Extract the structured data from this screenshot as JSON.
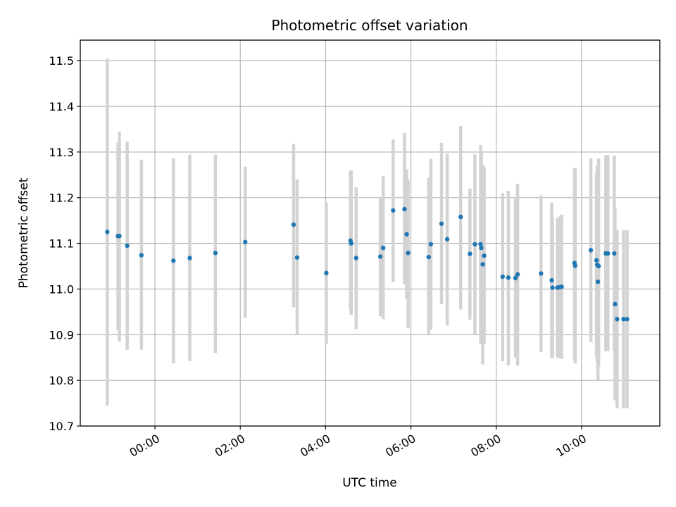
{
  "chart_data": {
    "type": "scatter",
    "title": "Photometric offset variation",
    "xlabel": "UTC time",
    "ylabel": "Photometric offset",
    "xlim": [
      "-01:45",
      "11:50"
    ],
    "ylim": [
      10.7,
      11.545
    ],
    "x_ticks": [
      "00:00",
      "02:00",
      "04:00",
      "06:00",
      "08:00",
      "10:00"
    ],
    "y_ticks": [
      "10.7",
      "10.8",
      "10.9",
      "11.0",
      "11.1",
      "11.2",
      "11.3",
      "11.4",
      "11.5"
    ],
    "grid": true,
    "colors": {
      "point": "#1f77b4",
      "errorbar": "#d3d3d3",
      "grid": "#b0b0b0"
    },
    "series": [
      {
        "points": [
          {
            "x": "-01:07",
            "y": 11.125,
            "ylo": 10.745,
            "yhi": 11.505
          },
          {
            "x": "-00:52",
            "y": 11.116,
            "ylo": 10.91,
            "yhi": 11.32
          },
          {
            "x": "-00:50",
            "y": 11.116,
            "ylo": 10.885,
            "yhi": 11.345
          },
          {
            "x": "-00:39",
            "y": 11.095,
            "ylo": 10.867,
            "yhi": 11.323
          },
          {
            "x": "-00:19",
            "y": 11.074,
            "ylo": 10.867,
            "yhi": 11.283
          },
          {
            "x": "00:26",
            "y": 11.062,
            "ylo": 10.837,
            "yhi": 11.287
          },
          {
            "x": "00:49",
            "y": 11.068,
            "ylo": 10.842,
            "yhi": 11.294
          },
          {
            "x": "01:25",
            "y": 11.079,
            "ylo": 10.86,
            "yhi": 11.294
          },
          {
            "x": "02:07",
            "y": 11.103,
            "ylo": 10.937,
            "yhi": 11.268
          },
          {
            "x": "03:15",
            "y": 11.141,
            "ylo": 10.96,
            "yhi": 11.318
          },
          {
            "x": "03:20",
            "y": 11.069,
            "ylo": 10.9,
            "yhi": 11.24
          },
          {
            "x": "04:01",
            "y": 11.035,
            "ylo": 10.88,
            "yhi": 11.19
          },
          {
            "x": "04:35",
            "y": 11.106,
            "ylo": 10.955,
            "yhi": 11.258
          },
          {
            "x": "04:36",
            "y": 11.1,
            "ylo": 10.943,
            "yhi": 11.26
          },
          {
            "x": "04:43",
            "y": 11.068,
            "ylo": 10.912,
            "yhi": 11.223
          },
          {
            "x": "05:17",
            "y": 11.071,
            "ylo": 10.94,
            "yhi": 11.2
          },
          {
            "x": "05:21",
            "y": 11.09,
            "ylo": 10.934,
            "yhi": 11.247
          },
          {
            "x": "05:35",
            "y": 11.172,
            "ylo": 11.015,
            "yhi": 11.328
          },
          {
            "x": "05:51",
            "y": 11.175,
            "ylo": 11.01,
            "yhi": 11.342
          },
          {
            "x": "05:54",
            "y": 11.12,
            "ylo": 10.978,
            "yhi": 11.262
          },
          {
            "x": "05:56",
            "y": 11.079,
            "ylo": 10.914,
            "yhi": 11.24
          },
          {
            "x": "06:25",
            "y": 11.07,
            "ylo": 10.9,
            "yhi": 11.243
          },
          {
            "x": "06:28",
            "y": 11.098,
            "ylo": 10.91,
            "yhi": 11.285
          },
          {
            "x": "06:43",
            "y": 11.143,
            "ylo": 10.967,
            "yhi": 11.32
          },
          {
            "x": "06:51",
            "y": 11.109,
            "ylo": 10.92,
            "yhi": 11.297
          },
          {
            "x": "07:10",
            "y": 11.158,
            "ylo": 10.955,
            "yhi": 11.357
          },
          {
            "x": "07:23",
            "y": 11.077,
            "ylo": 10.933,
            "yhi": 11.22
          },
          {
            "x": "07:30",
            "y": 11.098,
            "ylo": 10.9,
            "yhi": 11.295
          },
          {
            "x": "07:38",
            "y": 11.098,
            "ylo": 10.882,
            "yhi": 11.315
          },
          {
            "x": "07:39",
            "y": 11.09,
            "ylo": 10.88,
            "yhi": 11.3
          },
          {
            "x": "07:41",
            "y": 11.054,
            "ylo": 10.835,
            "yhi": 11.272
          },
          {
            "x": "07:43",
            "y": 11.073,
            "ylo": 10.88,
            "yhi": 11.268
          },
          {
            "x": "08:09",
            "y": 11.027,
            "ylo": 10.842,
            "yhi": 11.21
          },
          {
            "x": "08:17",
            "y": 11.025,
            "ylo": 10.833,
            "yhi": 11.215
          },
          {
            "x": "08:27",
            "y": 11.024,
            "ylo": 10.85,
            "yhi": 11.198
          },
          {
            "x": "08:30",
            "y": 11.032,
            "ylo": 10.832,
            "yhi": 11.23
          },
          {
            "x": "09:03",
            "y": 11.034,
            "ylo": 10.862,
            "yhi": 11.205
          },
          {
            "x": "09:18",
            "y": 11.019,
            "ylo": 10.849,
            "yhi": 11.189
          },
          {
            "x": "09:19",
            "y": 11.003,
            "ylo": 10.85,
            "yhi": 11.155
          },
          {
            "x": "09:26",
            "y": 11.003,
            "ylo": 10.85,
            "yhi": 11.155
          },
          {
            "x": "09:29",
            "y": 11.004,
            "ylo": 10.848,
            "yhi": 11.159
          },
          {
            "x": "09:32",
            "y": 11.005,
            "ylo": 10.847,
            "yhi": 11.163
          },
          {
            "x": "09:50",
            "y": 11.057,
            "ylo": 10.846,
            "yhi": 11.265
          },
          {
            "x": "09:51",
            "y": 11.051,
            "ylo": 10.837,
            "yhi": 11.265
          },
          {
            "x": "10:13",
            "y": 11.085,
            "ylo": 10.884,
            "yhi": 11.286
          },
          {
            "x": "10:21",
            "y": 11.063,
            "ylo": 10.85,
            "yhi": 11.255
          },
          {
            "x": "10:22",
            "y": 11.053,
            "ylo": 10.84,
            "yhi": 11.27
          },
          {
            "x": "10:23",
            "y": 11.016,
            "ylo": 10.8,
            "yhi": 11.23
          },
          {
            "x": "10:24",
            "y": 11.05,
            "ylo": 10.83,
            "yhi": 11.286
          },
          {
            "x": "10:34",
            "y": 11.078,
            "ylo": 10.864,
            "yhi": 11.293
          },
          {
            "x": "10:37",
            "y": 11.078,
            "ylo": 10.864,
            "yhi": 11.293
          },
          {
            "x": "10:46",
            "y": 11.078,
            "ylo": 10.864,
            "yhi": 11.292
          },
          {
            "x": "10:47",
            "y": 10.967,
            "ylo": 10.756,
            "yhi": 11.178
          },
          {
            "x": "10:50",
            "y": 10.934,
            "ylo": 10.739,
            "yhi": 11.129
          },
          {
            "x": "10:59",
            "y": 10.934,
            "ylo": 10.739,
            "yhi": 11.129
          },
          {
            "x": "11:04",
            "y": 10.934,
            "ylo": 10.739,
            "yhi": 11.129
          }
        ]
      }
    ]
  }
}
